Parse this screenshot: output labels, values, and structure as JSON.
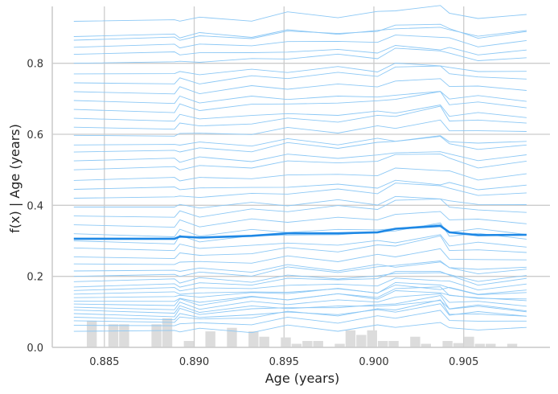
{
  "chart_data": {
    "type": "line",
    "title": "",
    "xlabel": "Age (years)",
    "ylabel": "f(x) | Age (years)",
    "xlim": [
      0.8821,
      0.9098
    ],
    "ylim": [
      0.0,
      0.96
    ],
    "grid": true,
    "xticks": [
      0.885,
      0.89,
      0.895,
      0.9,
      0.905
    ],
    "yticks": [
      0.0,
      0.2,
      0.4,
      0.6,
      0.8
    ],
    "xtick_labels": [
      "0.885",
      "0.890",
      "0.895",
      "0.900",
      "0.905"
    ],
    "ytick_labels": [
      "0.0",
      "0.2",
      "0.4",
      "0.6",
      "0.8"
    ],
    "colors": {
      "ice": "#8cc8f5",
      "pdp": "#1e88e5",
      "hist": "#dcdcdc",
      "grid": "#cccccc"
    },
    "x": [
      0.8833,
      0.8889,
      0.8892,
      0.8903,
      0.8932,
      0.8952,
      0.898,
      0.9002,
      0.9012,
      0.9037,
      0.9042,
      0.9058,
      0.9085
    ],
    "pdp": [
      0.306,
      0.306,
      0.312,
      0.309,
      0.314,
      0.321,
      0.321,
      0.324,
      0.334,
      0.342,
      0.324,
      0.316,
      0.317
    ],
    "ice_base": [
      0.045,
      0.062,
      0.075,
      0.085,
      0.095,
      0.105,
      0.113,
      0.122,
      0.13,
      0.14,
      0.15,
      0.16,
      0.17,
      0.185,
      0.2,
      0.215,
      0.235,
      0.255,
      0.28,
      0.3,
      0.32,
      0.345,
      0.37,
      0.395,
      0.42,
      0.445,
      0.47,
      0.5,
      0.525,
      0.55,
      0.57,
      0.597,
      0.62,
      0.645,
      0.67,
      0.695,
      0.72,
      0.745,
      0.77,
      0.8,
      0.825,
      0.845,
      0.865,
      0.875,
      0.918
    ],
    "histogram": {
      "bin_edges": [
        0.884,
        0.8846,
        0.8852,
        0.8858,
        0.8864,
        0.887,
        0.8876,
        0.8882,
        0.8888,
        0.8894,
        0.89,
        0.8906,
        0.8912,
        0.8918,
        0.8924,
        0.893,
        0.8936,
        0.8942,
        0.8948,
        0.8954,
        0.896,
        0.8966,
        0.8972,
        0.8978,
        0.8984,
        0.899,
        0.8996,
        0.9002,
        0.9008,
        0.9014,
        0.902,
        0.9026,
        0.9032,
        0.9038,
        0.9044,
        0.905,
        0.9056,
        0.9062,
        0.9068,
        0.9074,
        0.908
      ],
      "heights": [
        0.075,
        0.0,
        0.065,
        0.065,
        0.0,
        0.0,
        0.065,
        0.082,
        0.0,
        0.018,
        0.0,
        0.045,
        0.0,
        0.055,
        0.0,
        0.045,
        0.03,
        0.0,
        0.028,
        0.01,
        0.018,
        0.018,
        0.0,
        0.01,
        0.048,
        0.035,
        0.048,
        0.018,
        0.018,
        0.0,
        0.03,
        0.01,
        0.0,
        0.018,
        0.012,
        0.03,
        0.01,
        0.01,
        0.0,
        0.01
      ]
    }
  }
}
